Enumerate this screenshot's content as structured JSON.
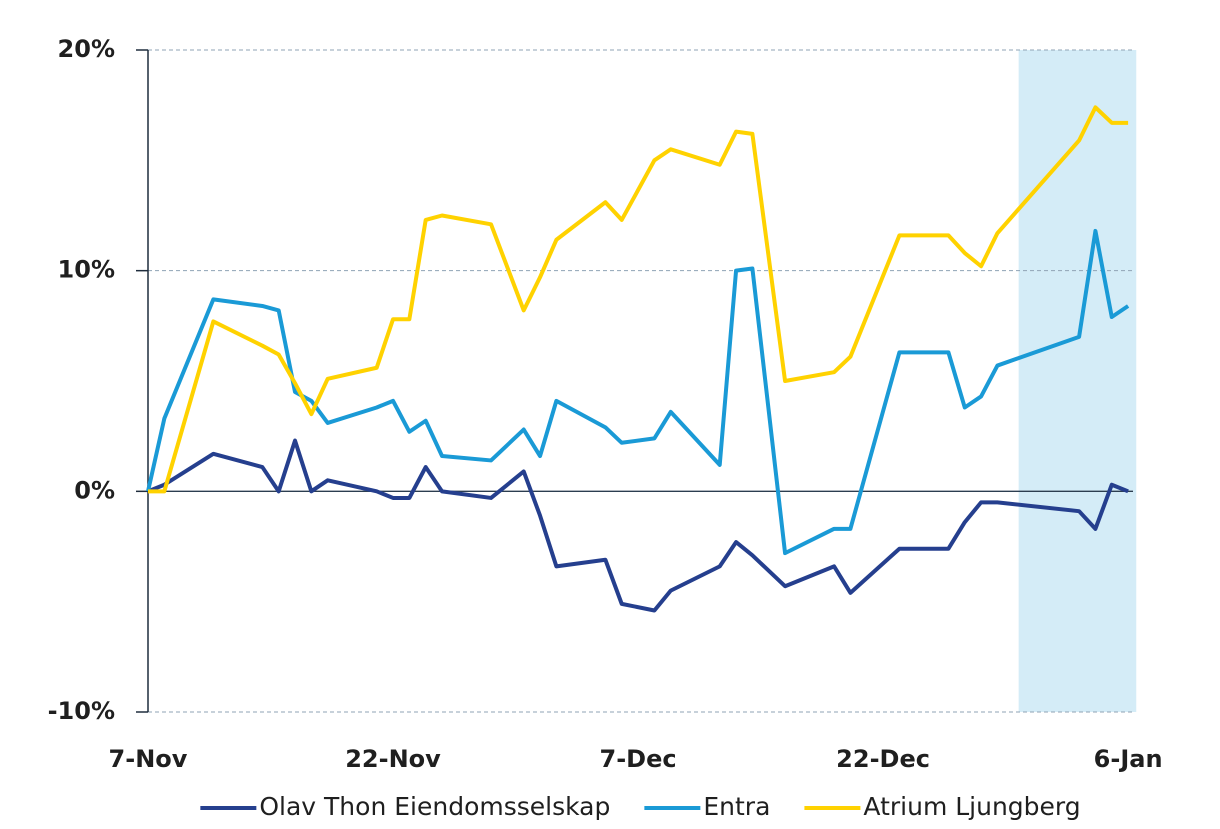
{
  "chart_data": {
    "type": "line",
    "x": [
      0,
      1,
      4,
      7,
      8,
      9,
      10,
      11,
      14,
      15,
      16,
      17,
      18,
      21,
      23,
      24,
      25,
      28,
      29,
      31,
      32,
      35,
      36,
      37,
      39,
      42,
      43,
      46,
      49,
      50,
      51,
      52,
      57,
      58,
      59,
      60
    ],
    "series": [
      {
        "name": "Olav Thon Eiendomsselskap",
        "color": "#253f8e",
        "values": [
          0,
          0.3,
          1.7,
          1.1,
          0,
          2.3,
          0,
          0.5,
          0,
          -0.3,
          -0.3,
          1.1,
          0,
          -0.3,
          0.9,
          -1.1,
          -3.4,
          -3.1,
          -5.1,
          -5.4,
          -4.5,
          -3.4,
          -2.3,
          -2.9,
          -4.3,
          -3.4,
          -4.6,
          -2.6,
          -2.6,
          -1.4,
          -0.5,
          -0.5,
          -0.9,
          -1.7,
          0.3,
          0
        ]
      },
      {
        "name": "Entra",
        "color": "#1a9ad6",
        "values": [
          0,
          3.3,
          8.7,
          8.4,
          8.2,
          4.5,
          4.1,
          3.1,
          3.8,
          4.1,
          2.7,
          3.2,
          1.6,
          1.4,
          2.8,
          1.6,
          4.1,
          2.9,
          2.2,
          2.4,
          3.6,
          1.2,
          10.0,
          10.1,
          -2.8,
          -1.7,
          -1.7,
          6.3,
          6.3,
          3.8,
          4.3,
          5.7,
          7.0,
          11.8,
          7.9,
          8.4
        ]
      },
      {
        "name": "Atrium Ljungberg",
        "color": "#ffd200",
        "values": [
          0,
          0,
          7.7,
          6.6,
          6.2,
          4.9,
          3.5,
          5.1,
          5.6,
          7.8,
          7.8,
          12.3,
          12.5,
          12.1,
          8.2,
          9.7,
          11.4,
          13.1,
          12.3,
          15.0,
          15.5,
          14.8,
          16.3,
          16.2,
          5.0,
          5.4,
          6.1,
          11.6,
          11.6,
          10.8,
          10.2,
          11.7,
          15.9,
          17.4,
          16.7,
          16.7
        ]
      }
    ],
    "xlim": [
      0,
      60.3
    ],
    "xticks": [
      {
        "value": 0,
        "label": "7-Nov"
      },
      {
        "value": 15,
        "label": "22-Nov"
      },
      {
        "value": 30,
        "label": "7-Dec"
      },
      {
        "value": 45,
        "label": "22-Dec"
      },
      {
        "value": 60,
        "label": "6-Jan"
      }
    ],
    "ylim": [
      -10,
      20
    ],
    "yticks": [
      {
        "value": -10,
        "label": "-10%"
      },
      {
        "value": 0,
        "label": "0%"
      },
      {
        "value": 10,
        "label": "10%"
      },
      {
        "value": 20,
        "label": "20%"
      }
    ],
    "grid": true,
    "shaded_x": [
      53.3,
      60.5
    ],
    "shade_color": "#d4ecf7",
    "legend": "bottom"
  }
}
